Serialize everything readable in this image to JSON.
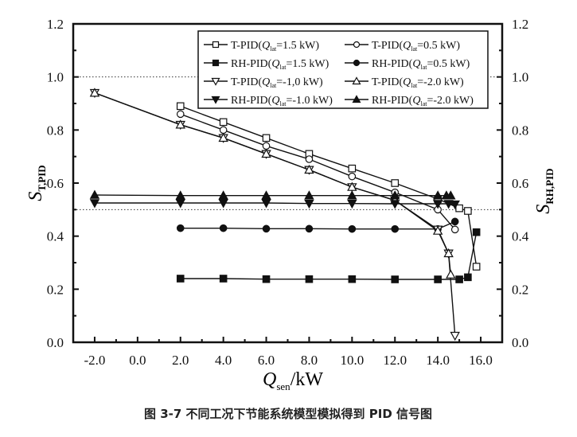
{
  "chart_data": {
    "type": "line",
    "caption": "图 3-7 不同工况下节能系统模型模拟得到 PID 信号图",
    "xlabel": {
      "main": "Q",
      "sub": "sen",
      "unit": "/kW"
    },
    "ylabel_left": {
      "main": "S",
      "sub": "T,PID"
    },
    "ylabel_right": {
      "main": "S",
      "sub": "RH,PID"
    },
    "xlim": [
      -3,
      17
    ],
    "ylim": [
      0,
      1.2
    ],
    "x_ticks": [
      "-2.0",
      "0.0",
      "2.0",
      "4.0",
      "6.0",
      "8.0",
      "10.0",
      "12.0",
      "14.0",
      "16.0"
    ],
    "y_ticks": [
      "0.0",
      "0.2",
      "0.4",
      "0.6",
      "0.8",
      "1.0",
      "1.2"
    ],
    "reference_lines": [
      1.0,
      0.5
    ],
    "legend_placement": "top-right",
    "series": [
      {
        "name": "T-PID(Q_lat=1.5 kW)",
        "label": "T-PID(",
        "q": "1.5 kW)",
        "marker": "square-open",
        "x": [
          2,
          4,
          6,
          8,
          10,
          12,
          14,
          15.0,
          15.4,
          15.8
        ],
        "y": [
          0.89,
          0.83,
          0.77,
          0.71,
          0.655,
          0.6,
          0.54,
          0.505,
          0.495,
          0.285
        ]
      },
      {
        "name": "T-PID(Q_lat=0.5 kW)",
        "label": "T-PID(",
        "q": "0.5 kW)",
        "marker": "circle-open",
        "x": [
          2,
          4,
          6,
          8,
          10,
          12,
          14,
          14.8
        ],
        "y": [
          0.86,
          0.8,
          0.74,
          0.69,
          0.625,
          0.565,
          0.5,
          0.425
        ]
      },
      {
        "name": "RH-PID(Q_lat=1.5 kW)",
        "label": "RH-PID(",
        "q": "1.5 kW)",
        "marker": "square-filled",
        "x": [
          2,
          4,
          6,
          8,
          10,
          12,
          14,
          15.0,
          15.4,
          15.8
        ],
        "y": [
          0.24,
          0.24,
          0.238,
          0.238,
          0.238,
          0.237,
          0.237,
          0.237,
          0.245,
          0.415
        ]
      },
      {
        "name": "RH-PID(Q_lat=0.5 kW)",
        "label": "RH-PID(",
        "q": "0.5 kW)",
        "marker": "circle-filled",
        "x": [
          2,
          4,
          6,
          8,
          10,
          12,
          14,
          14.8
        ],
        "y": [
          0.43,
          0.43,
          0.428,
          0.428,
          0.427,
          0.427,
          0.427,
          0.455
        ]
      },
      {
        "name": "T-PID(Q_lat=-1,0 kW)",
        "label": "T-PID(",
        "q": "-1,0 kW)",
        "marker": "triangle-down-open",
        "x": [
          -2,
          2,
          4,
          6,
          8,
          10,
          12,
          14,
          14.5,
          14.8
        ],
        "y": [
          0.94,
          0.82,
          0.77,
          0.71,
          0.65,
          0.585,
          0.535,
          0.425,
          0.335,
          0.025
        ]
      },
      {
        "name": "T-PID(Q_lat=-2.0 kW)",
        "label": "T-PID(",
        "q": "-2.0 kW)",
        "marker": "triangle-up-open",
        "x": [
          -2,
          2,
          4,
          6,
          8,
          10,
          12,
          14,
          14.5,
          14.6
        ],
        "y": [
          0.94,
          0.82,
          0.77,
          0.71,
          0.65,
          0.585,
          0.535,
          0.42,
          0.335,
          0.255
        ]
      },
      {
        "name": "RH-PID(Q_lat=-1.0 kW)",
        "label": "RH-PID(",
        "q": "-1.0 kW)",
        "marker": "triangle-down-filled",
        "x": [
          -2,
          2,
          4,
          6,
          8,
          10,
          12,
          14,
          14.5,
          14.8
        ],
        "y": [
          0.525,
          0.525,
          0.525,
          0.525,
          0.523,
          0.523,
          0.522,
          0.522,
          0.522,
          0.52
        ]
      },
      {
        "name": "RH-PID(Q_lat=-2.0 kW)",
        "label": "RH-PID(",
        "q": "-2.0 kW)",
        "marker": "triangle-up-filled",
        "x": [
          -2,
          2,
          4,
          6,
          8,
          10,
          12,
          14,
          14.4,
          14.6
        ],
        "y": [
          0.555,
          0.553,
          0.553,
          0.553,
          0.553,
          0.553,
          0.553,
          0.553,
          0.553,
          0.553
        ]
      }
    ]
  }
}
